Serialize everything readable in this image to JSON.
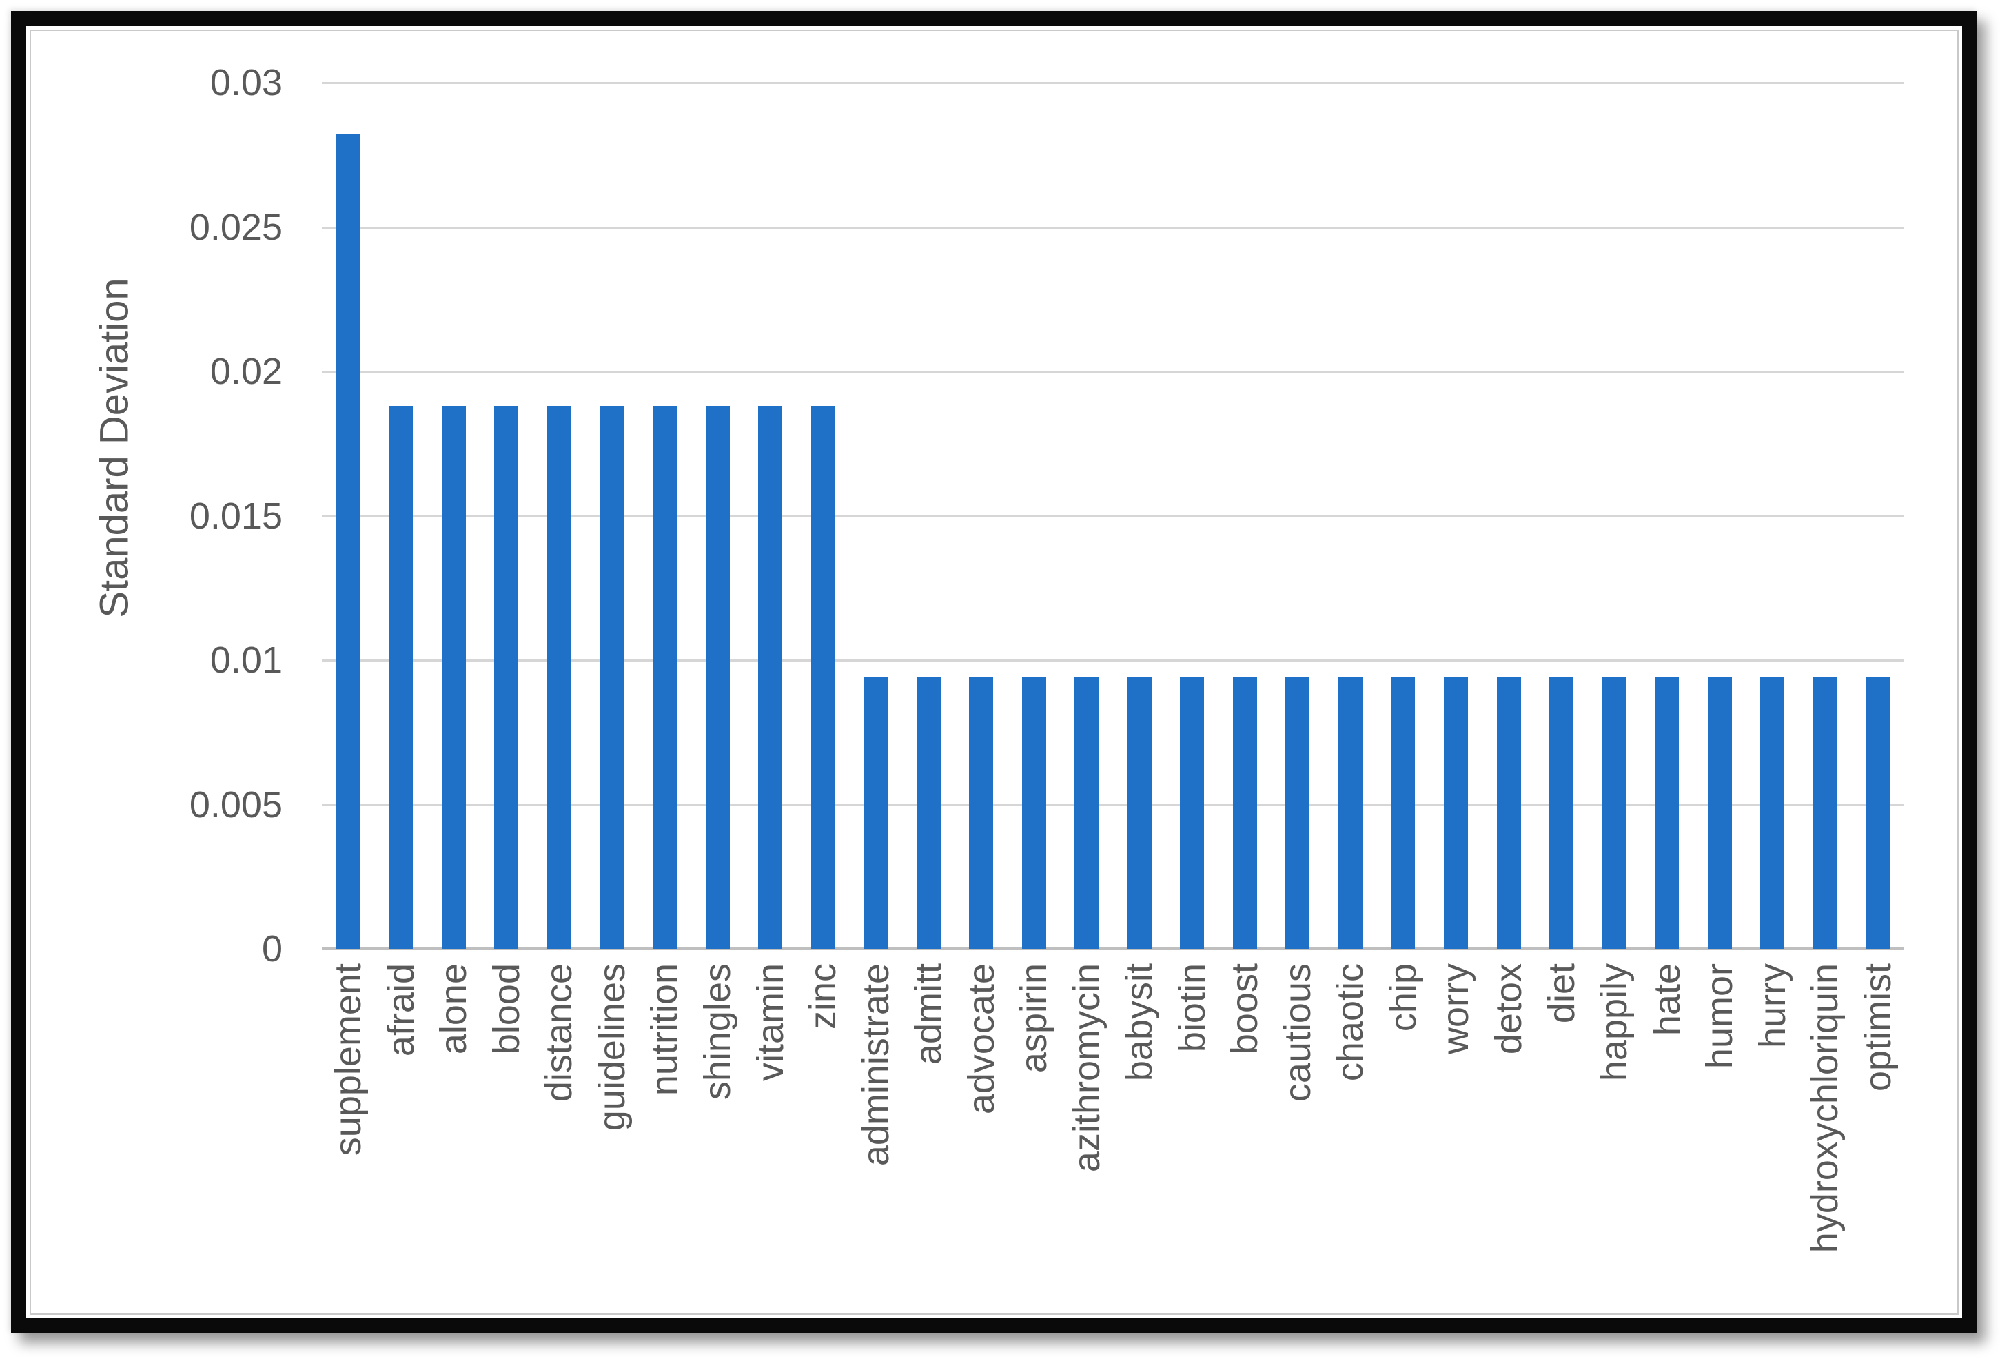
{
  "figure": {
    "frame_color": "#0a0a0a",
    "background": "#ffffff",
    "surface_border_color": "#c9c9c9"
  },
  "chart_data": {
    "type": "bar",
    "title": "",
    "xlabel": "",
    "ylabel": "Standard Deviation",
    "categories": [
      "supplement",
      "afraid",
      "alone",
      "blood",
      "distance",
      "guidelines",
      "nutrition",
      "shingles",
      "vitamin",
      "zinc",
      "administrate",
      "admitt",
      "advocate",
      "aspirin",
      "azithromycin",
      "babysit",
      "biotin",
      "boost",
      "cautious",
      "chaotic",
      "chip",
      "worry",
      "detox",
      "diet",
      "happily",
      "hate",
      "humor",
      "hurry",
      "hydroxychloriquin",
      "optimist"
    ],
    "values": [
      0.0282,
      0.0188,
      0.0188,
      0.0188,
      0.0188,
      0.0188,
      0.0188,
      0.0188,
      0.0188,
      0.0188,
      0.0094,
      0.0094,
      0.0094,
      0.0094,
      0.0094,
      0.0094,
      0.0094,
      0.0094,
      0.0094,
      0.0094,
      0.0094,
      0.0094,
      0.0094,
      0.0094,
      0.0094,
      0.0094,
      0.0094,
      0.0094,
      0.0094,
      0.0094
    ],
    "ylim": [
      0,
      0.03
    ],
    "ytick_labels": [
      "0",
      "0.005",
      "0.01",
      "0.015",
      "0.02",
      "0.025",
      "0.03"
    ],
    "grid": true,
    "legend": false,
    "bar_color": "#1e71c6",
    "gridline_color": "#d6d6d6",
    "axis_line_color": "#bfbfbf",
    "text_color": "#595959"
  }
}
